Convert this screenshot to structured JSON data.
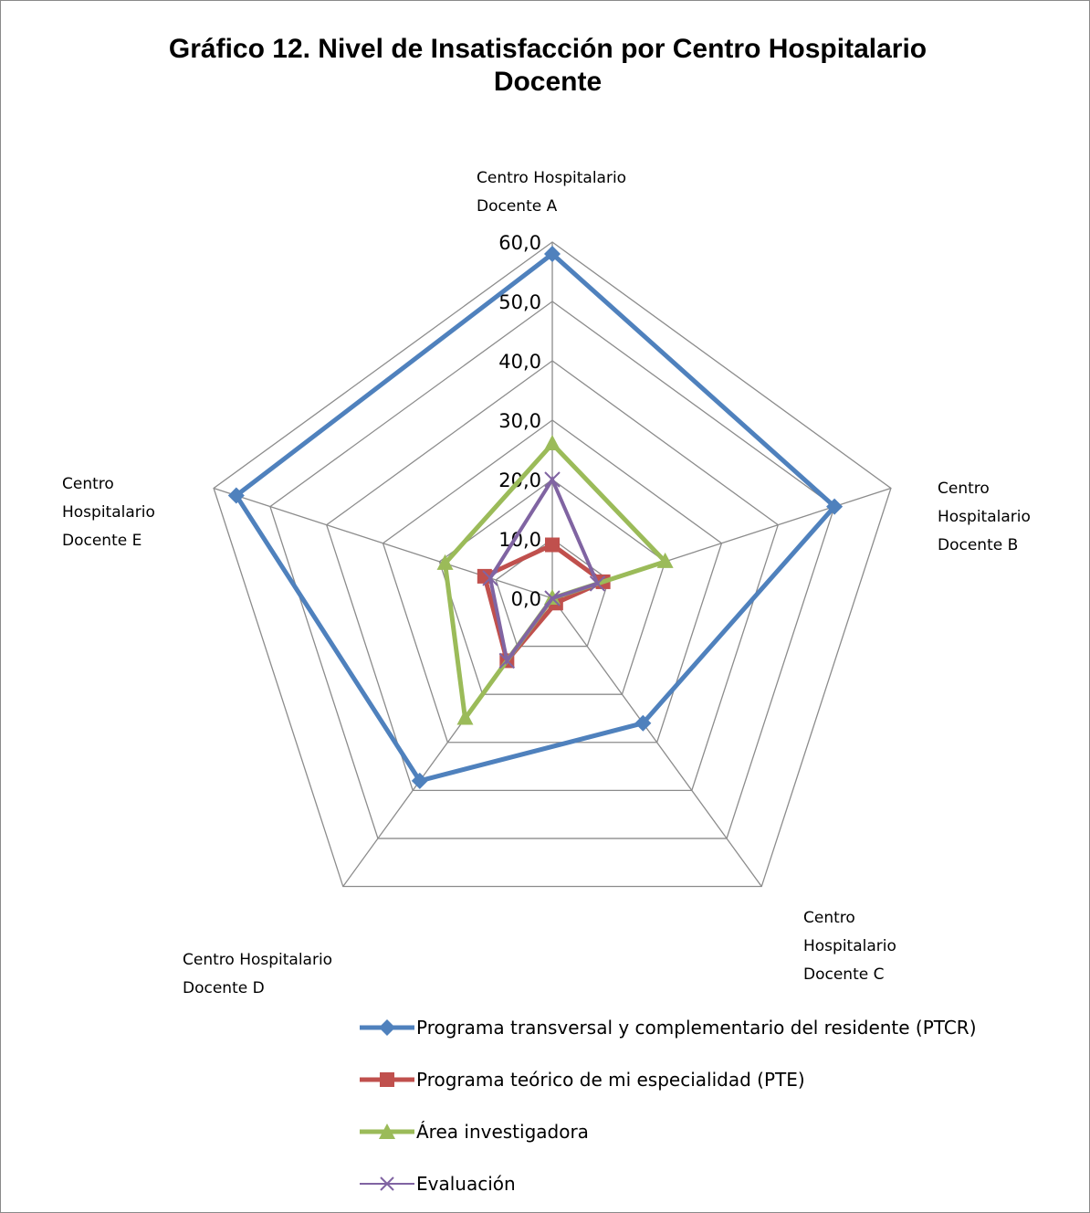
{
  "chart_data": {
    "type": "radar",
    "title_line1": "Gráfico 12. Nivel de Insatisfacción por Centro Hospitalario",
    "title_line2": "Docente",
    "categories": [
      "Centro Hospitalario Docente A",
      "Centro Hospitalario Docente B",
      "Centro Hospitalario Docente C",
      "Centro Hospitalario Docente D",
      "Centro Hospitalario Docente E"
    ],
    "category_lines": [
      [
        "Centro Hospitalario",
        "Docente A"
      ],
      [
        "Centro",
        "Hospitalario",
        "Docente B"
      ],
      [
        "Centro",
        "Hospitalario",
        "Docente C"
      ],
      [
        "Centro Hospitalario",
        "Docente D"
      ],
      [
        "Centro",
        "Hospitalario",
        "Docente E"
      ]
    ],
    "r_ticks": [
      "0,0",
      "10,0",
      "20,0",
      "30,0",
      "40,0",
      "50,0",
      "60,0"
    ],
    "r_range": [
      0,
      60
    ],
    "r_tick_step": 10,
    "series": [
      {
        "name": "Programa transversal y complementario del residente (PTCR)",
        "color": "#4f81bd",
        "marker": "diamond",
        "values": [
          58,
          50,
          26,
          38,
          56
        ]
      },
      {
        "name": "Programa teórico de mi especialidad (PTE)",
        "color": "#c0504d",
        "marker": "square",
        "values": [
          9,
          9,
          1,
          13,
          12
        ]
      },
      {
        "name": "Área investigadora",
        "color": "#9bbb59",
        "marker": "triangle",
        "values": [
          26,
          20,
          0,
          25,
          19
        ]
      },
      {
        "name": "Evaluación",
        "color": "#8064a2",
        "marker": "x",
        "values": [
          20,
          8,
          0,
          13,
          11
        ]
      }
    ]
  }
}
